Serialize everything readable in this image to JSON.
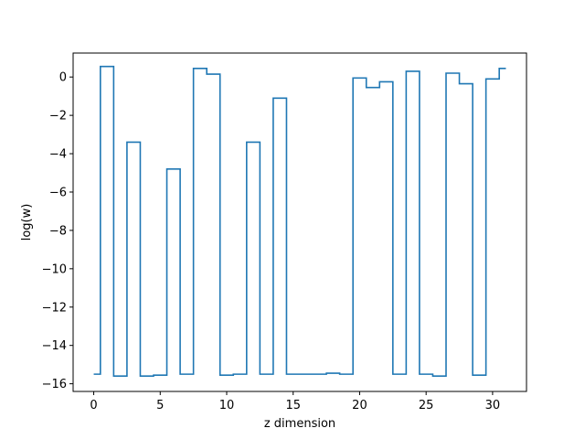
{
  "chart_data": {
    "type": "line",
    "drawstyle": "steps-mid",
    "title": "",
    "xlabel": "z dimension",
    "ylabel": "log(w)",
    "xlim": [
      -1.55,
      32.55
    ],
    "ylim": [
      -16.4,
      1.25
    ],
    "xticks": [
      0,
      5,
      10,
      15,
      20,
      25,
      30
    ],
    "yticks": [
      0,
      -2,
      -4,
      -6,
      -8,
      -10,
      -12,
      -14,
      -16
    ],
    "xtick_labels": [
      "0",
      "5",
      "10",
      "15",
      "20",
      "25",
      "30"
    ],
    "ytick_labels": [
      "0",
      "−2",
      "−4",
      "−6",
      "−8",
      "−10",
      "−12",
      "−14",
      "−16"
    ],
    "grid": false,
    "color": "#1f77b4",
    "series": [
      {
        "x": [
          0,
          1,
          2,
          3,
          4,
          5,
          6,
          7,
          8,
          9,
          10,
          11,
          12,
          13,
          14,
          15,
          16,
          17,
          18,
          19,
          20,
          21,
          22,
          23,
          24,
          25,
          26,
          27,
          28,
          29,
          30,
          31
        ],
        "values": [
          -15.5,
          0.55,
          -15.6,
          -3.4,
          -15.6,
          -15.55,
          -4.8,
          -15.5,
          0.45,
          0.15,
          -15.55,
          -15.5,
          -3.4,
          -15.5,
          -1.1,
          -15.5,
          -15.5,
          -15.5,
          -15.45,
          -15.5,
          -0.05,
          -0.55,
          -0.25,
          -15.5,
          0.3,
          -15.5,
          -15.6,
          0.2,
          -0.35,
          -15.55,
          -0.1,
          0.45
        ]
      }
    ]
  }
}
